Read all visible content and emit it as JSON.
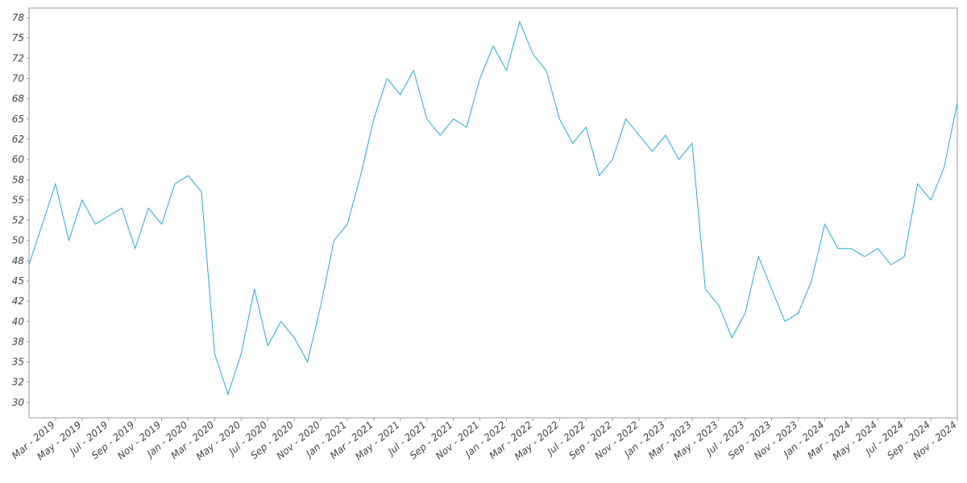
{
  "chart_data": {
    "type": "line",
    "x": [
      "2019-01",
      "2019-02",
      "2019-03",
      "2019-04",
      "2019-05",
      "2019-06",
      "2019-07",
      "2019-08",
      "2019-09",
      "2019-10",
      "2019-11",
      "2019-12",
      "2020-01",
      "2020-02",
      "2020-03",
      "2020-04",
      "2020-05",
      "2020-06",
      "2020-07",
      "2020-08",
      "2020-09",
      "2020-10",
      "2020-11",
      "2020-12",
      "2021-01",
      "2021-02",
      "2021-03",
      "2021-04",
      "2021-05",
      "2021-06",
      "2021-07",
      "2021-08",
      "2021-09",
      "2021-10",
      "2021-11",
      "2021-12",
      "2022-01",
      "2022-02",
      "2022-03",
      "2022-04",
      "2022-05",
      "2022-06",
      "2022-07",
      "2022-08",
      "2022-09",
      "2022-10",
      "2022-11",
      "2022-12",
      "2023-01",
      "2023-02",
      "2023-03",
      "2023-04",
      "2023-05",
      "2023-06",
      "2023-07",
      "2023-08",
      "2023-09",
      "2023-10",
      "2023-11",
      "2023-12",
      "2024-01",
      "2024-02",
      "2024-03",
      "2024-04",
      "2024-05",
      "2024-06",
      "2024-07",
      "2024-08",
      "2024-09",
      "2024-10",
      "2024-11"
    ],
    "series": [
      {
        "color": "#29a8d8",
        "values": [
          47,
          52,
          57,
          50,
          55,
          52,
          53,
          54,
          49,
          54,
          52,
          57,
          58,
          56,
          36,
          31,
          36,
          44,
          37,
          40,
          38,
          35,
          42,
          50,
          52,
          58,
          65,
          70,
          68,
          71,
          65,
          63,
          65,
          64,
          70,
          74,
          71,
          77,
          73,
          71,
          65,
          62,
          64,
          58,
          60,
          65,
          63,
          61,
          63,
          60,
          62,
          44,
          42,
          38,
          41,
          48,
          44,
          40,
          41,
          45,
          52,
          49,
          49,
          48,
          49,
          47,
          48,
          57,
          55,
          59,
          67
        ]
      }
    ],
    "xlim": [
      "2019-01",
      "2024-11"
    ],
    "xticks": [
      {
        "value": "2019-03",
        "label": "Mar - 2019"
      },
      {
        "value": "2019-05",
        "label": "May - 2019"
      },
      {
        "value": "2019-07",
        "label": "Jul - 2019"
      },
      {
        "value": "2019-09",
        "label": "Sep - 2019"
      },
      {
        "value": "2019-11",
        "label": "Nov - 2019"
      },
      {
        "value": "2020-01",
        "label": "Jan - 2020"
      },
      {
        "value": "2020-03",
        "label": "Mar - 2020"
      },
      {
        "value": "2020-05",
        "label": "May - 2020"
      },
      {
        "value": "2020-07",
        "label": "Jul - 2020"
      },
      {
        "value": "2020-09",
        "label": "Sep - 2020"
      },
      {
        "value": "2020-11",
        "label": "Nov - 2020"
      },
      {
        "value": "2021-01",
        "label": "Jan - 2021"
      },
      {
        "value": "2021-03",
        "label": "Mar - 2021"
      },
      {
        "value": "2021-05",
        "label": "May - 2021"
      },
      {
        "value": "2021-07",
        "label": "Jul - 2021"
      },
      {
        "value": "2021-09",
        "label": "Sep - 2021"
      },
      {
        "value": "2021-11",
        "label": "Nov - 2021"
      },
      {
        "value": "2022-01",
        "label": "Jan - 2022"
      },
      {
        "value": "2022-03",
        "label": "Mar - 2022"
      },
      {
        "value": "2022-05",
        "label": "May - 2022"
      },
      {
        "value": "2022-07",
        "label": "Jul - 2022"
      },
      {
        "value": "2022-09",
        "label": "Sep - 2022"
      },
      {
        "value": "2022-11",
        "label": "Nov - 2022"
      },
      {
        "value": "2023-01",
        "label": "Jan - 2023"
      },
      {
        "value": "2023-03",
        "label": "Mar - 2023"
      },
      {
        "value": "2023-05",
        "label": "May - 2023"
      },
      {
        "value": "2023-07",
        "label": "Jul - 2023"
      },
      {
        "value": "2023-09",
        "label": "Sep - 2023"
      },
      {
        "value": "2023-11",
        "label": "Nov - 2023"
      },
      {
        "value": "2024-01",
        "label": "Jan - 2024"
      },
      {
        "value": "2024-03",
        "label": "Mar - 2024"
      },
      {
        "value": "2024-05",
        "label": "May - 2024"
      },
      {
        "value": "2024-07",
        "label": "Jul - 2024"
      },
      {
        "value": "2024-09",
        "label": "Sep - 2024"
      },
      {
        "value": "2024-11",
        "label": "Nov - 2024"
      }
    ],
    "ylim": [
      28.1,
      78.7
    ],
    "yticks": [
      30,
      {
        "value": 32.5,
        "label": "32"
      },
      35,
      {
        "value": 37.5,
        "label": "38"
      },
      40,
      {
        "value": 42.5,
        "label": "42"
      },
      45,
      {
        "value": 47.5,
        "label": "48"
      },
      50,
      {
        "value": 52.5,
        "label": "52"
      },
      55,
      {
        "value": 57.5,
        "label": "58"
      },
      60,
      {
        "value": 62.5,
        "label": "62"
      },
      65,
      {
        "value": 67.5,
        "label": "68"
      },
      70,
      {
        "value": 72.5,
        "label": "72"
      },
      75,
      {
        "value": 77.5,
        "label": "78"
      }
    ]
  }
}
